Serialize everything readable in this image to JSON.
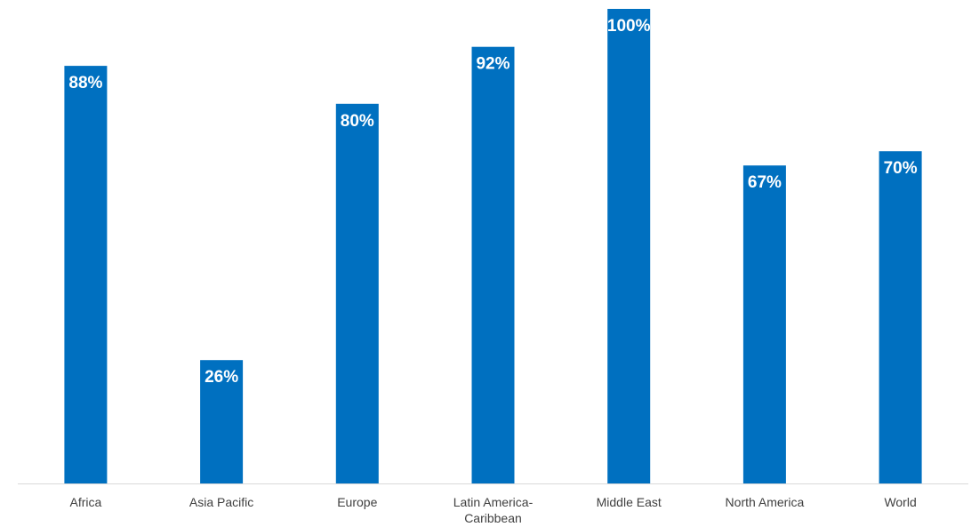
{
  "chart_data": {
    "type": "bar",
    "title": "",
    "xlabel": "",
    "ylabel": "",
    "categories": [
      [
        "Africa"
      ],
      [
        "Asia Pacific"
      ],
      [
        "Europe"
      ],
      [
        "Latin America-",
        "Caribbean"
      ],
      [
        "Middle East"
      ],
      [
        "North America"
      ],
      [
        "World"
      ]
    ],
    "values": [
      88,
      26,
      80,
      92,
      100,
      67,
      70
    ],
    "data_labels": [
      "88%",
      "26%",
      "80%",
      "92%",
      "100%",
      "67%",
      "70%"
    ],
    "value_unit": "%",
    "ylim": [
      0,
      100
    ],
    "grid": false,
    "legend": "none",
    "bar_color": "#0070C0",
    "axis_color": "#D9D9D9",
    "label_color": "#404040",
    "data_label_color": "#FFFFFF"
  }
}
